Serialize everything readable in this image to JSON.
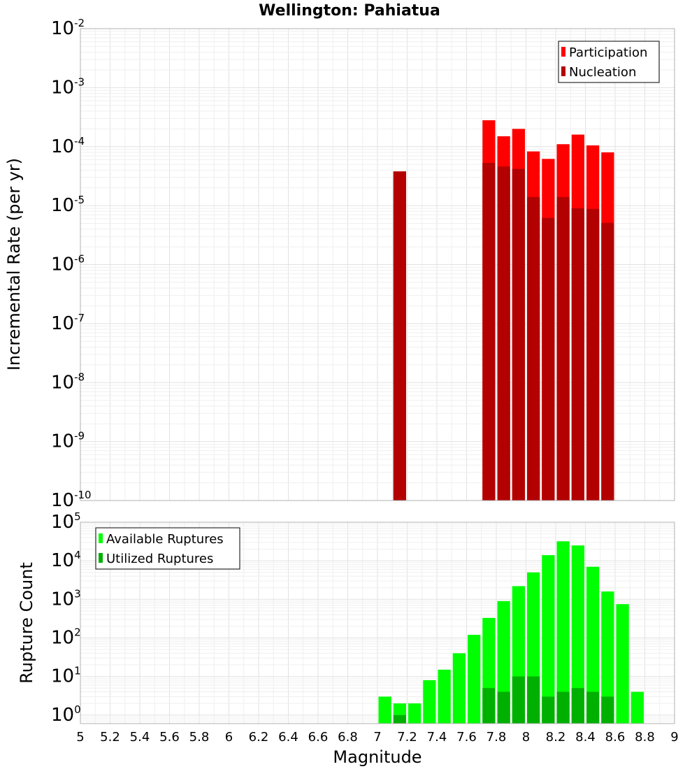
{
  "figure": {
    "title": "Wellington: Pahiatua",
    "xlabel": "Magnitude"
  },
  "chart_data": [
    {
      "type": "bar",
      "title": "Wellington: Pahiatua",
      "xlabel": "Magnitude",
      "ylabel": "Incremental Rate (per yr)",
      "yscale": "log",
      "xlim": [
        5,
        9
      ],
      "ylim": [
        1e-10,
        0.01
      ],
      "grid": true,
      "legend_position": "top-right",
      "xticks": [
        "5",
        "5.2",
        "5.4",
        "5.6",
        "5.8",
        "6",
        "6.2",
        "6.4",
        "6.6",
        "6.8",
        "7",
        "7.2",
        "7.4",
        "7.6",
        "7.8",
        "8",
        "8.2",
        "8.4",
        "8.6",
        "8.8",
        "9"
      ],
      "yticks": [
        {
          "base": "10",
          "exp": "-10",
          "value": 1e-10
        },
        {
          "base": "10",
          "exp": "-9",
          "value": 1e-09
        },
        {
          "base": "10",
          "exp": "-8",
          "value": 1e-08
        },
        {
          "base": "10",
          "exp": "-7",
          "value": 1e-07
        },
        {
          "base": "10",
          "exp": "-6",
          "value": 1e-06
        },
        {
          "base": "10",
          "exp": "-5",
          "value": 1e-05
        },
        {
          "base": "10",
          "exp": "-4",
          "value": 0.0001
        },
        {
          "base": "10",
          "exp": "-3",
          "value": 0.001
        },
        {
          "base": "10",
          "exp": "-2",
          "value": 0.01
        }
      ],
      "x": [
        7.15,
        7.75,
        7.85,
        7.95,
        8.05,
        8.15,
        8.25,
        8.35,
        8.45,
        8.55
      ],
      "series": [
        {
          "name": "Participation",
          "color": "#ff0000",
          "values": [
            3.8e-05,
            0.00028,
            0.00015,
            0.0002,
            8.3e-05,
            6.2e-05,
            0.00011,
            0.00016,
            0.000105,
            8e-05
          ]
        },
        {
          "name": "Nucleation",
          "color": "#b30000",
          "values": [
            3.8e-05,
            5.3e-05,
            4.6e-05,
            4.2e-05,
            1.4e-05,
            6.2e-06,
            1.4e-05,
            9e-06,
            8.8e-06,
            5.1e-06
          ]
        }
      ]
    },
    {
      "type": "bar",
      "xlabel": "Magnitude",
      "ylabel": "Rupture Count",
      "yscale": "log",
      "xlim": [
        5,
        9
      ],
      "ylim": [
        0.6,
        100000
      ],
      "grid": true,
      "legend_position": "top-left",
      "xticks": [
        "5",
        "5.2",
        "5.4",
        "5.6",
        "5.8",
        "6",
        "6.2",
        "6.4",
        "6.6",
        "6.8",
        "7",
        "7.2",
        "7.4",
        "7.6",
        "7.8",
        "8",
        "8.2",
        "8.4",
        "8.6",
        "8.8",
        "9"
      ],
      "yticks": [
        {
          "base": "10",
          "exp": "0",
          "value": 1
        },
        {
          "base": "10",
          "exp": "1",
          "value": 10
        },
        {
          "base": "10",
          "exp": "2",
          "value": 100
        },
        {
          "base": "10",
          "exp": "3",
          "value": 1000
        },
        {
          "base": "10",
          "exp": "4",
          "value": 10000
        },
        {
          "base": "10",
          "exp": "5",
          "value": 100000
        }
      ],
      "x": [
        7.05,
        7.15,
        7.25,
        7.35,
        7.45,
        7.55,
        7.65,
        7.75,
        7.85,
        7.95,
        8.05,
        8.15,
        8.25,
        8.35,
        8.45,
        8.55,
        8.65,
        8.75
      ],
      "series": [
        {
          "name": "Available Ruptures",
          "color": "#00ff00",
          "values": [
            3,
            2,
            2,
            8,
            15,
            40,
            120,
            330,
            900,
            2200,
            5000,
            14000,
            32000,
            25000,
            7000,
            1600,
            750,
            4
          ]
        },
        {
          "name": "Utilized Ruptures",
          "color": "#00b000",
          "values": [
            0,
            1,
            0,
            0,
            0,
            0,
            0,
            5,
            4,
            10,
            10,
            3,
            4,
            5,
            4,
            3,
            0,
            0
          ]
        }
      ]
    }
  ]
}
